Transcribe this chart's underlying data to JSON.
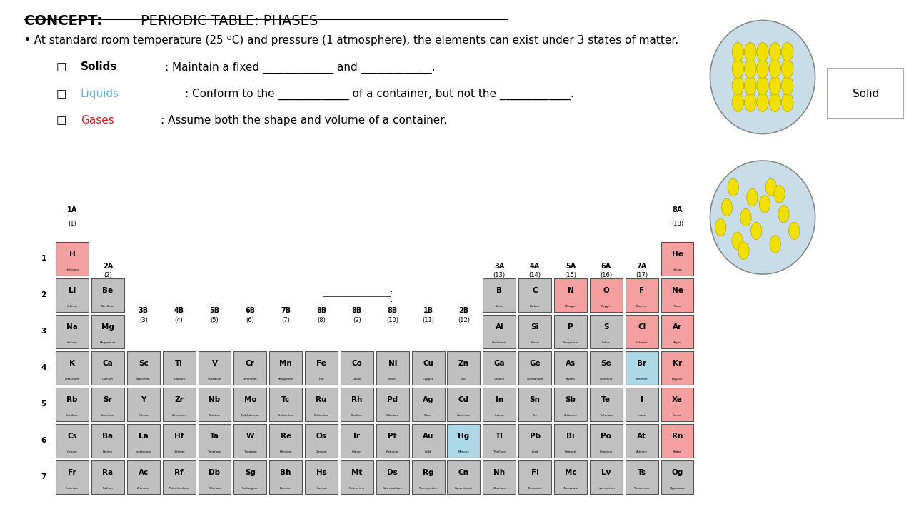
{
  "title_concept": "CONCEPT:",
  "title_main": " PERIODIC TABLE: PHASES",
  "bullet_text": "At standard room temperature (25 ºC) and pressure (1 atmosphere), the elements can exist under 3 states of matter.",
  "bg_color": "#ffffff",
  "liquid_color": "#6baed6",
  "gas_color": "#e41a1c",
  "element_bg_solid": "#c0c0c0",
  "element_bg_gas": "#f4a0a0",
  "element_bg_liquid": "#add8e6",
  "group_headers": [
    "1A",
    "2A",
    "3B",
    "4B",
    "5B",
    "6B",
    "7B",
    "8B",
    "8B",
    "8B",
    "1B",
    "2B",
    "3A",
    "4A",
    "5A",
    "6A",
    "7A",
    "8A"
  ],
  "group_numbers": [
    "(1)",
    "(2)",
    "(3)",
    "(4)",
    "(5)",
    "(6)",
    "(7)",
    "(8)",
    "(9)",
    "(10)",
    "(11)",
    "(12)",
    "(13)",
    "(14)",
    "(15)",
    "(16)",
    "(17)",
    "(18)"
  ],
  "period_labels": [
    "1",
    "2",
    "3",
    "4",
    "5",
    "6",
    "7"
  ],
  "elements": [
    {
      "symbol": "H",
      "name": "Hydrogen",
      "row": 1,
      "col": 1,
      "phase": "gas"
    },
    {
      "symbol": "He",
      "name": "Helium",
      "row": 1,
      "col": 18,
      "phase": "gas"
    },
    {
      "symbol": "Li",
      "name": "Lithium",
      "row": 2,
      "col": 1,
      "phase": "solid"
    },
    {
      "symbol": "Be",
      "name": "Beryllium",
      "row": 2,
      "col": 2,
      "phase": "solid"
    },
    {
      "symbol": "B",
      "name": "Boron",
      "row": 2,
      "col": 13,
      "phase": "solid"
    },
    {
      "symbol": "C",
      "name": "Carbon",
      "row": 2,
      "col": 14,
      "phase": "solid"
    },
    {
      "symbol": "N",
      "name": "Nitrogen",
      "row": 2,
      "col": 15,
      "phase": "gas"
    },
    {
      "symbol": "O",
      "name": "Oxygen",
      "row": 2,
      "col": 16,
      "phase": "gas"
    },
    {
      "symbol": "F",
      "name": "Fluorine",
      "row": 2,
      "col": 17,
      "phase": "gas"
    },
    {
      "symbol": "Ne",
      "name": "Neon",
      "row": 2,
      "col": 18,
      "phase": "gas"
    },
    {
      "symbol": "Na",
      "name": "Sodium",
      "row": 3,
      "col": 1,
      "phase": "solid"
    },
    {
      "symbol": "Mg",
      "name": "Magnesium",
      "row": 3,
      "col": 2,
      "phase": "solid"
    },
    {
      "symbol": "Al",
      "name": "Aluminum",
      "row": 3,
      "col": 13,
      "phase": "solid"
    },
    {
      "symbol": "Si",
      "name": "Silicon",
      "row": 3,
      "col": 14,
      "phase": "solid"
    },
    {
      "symbol": "P",
      "name": "Phosphorus",
      "row": 3,
      "col": 15,
      "phase": "solid"
    },
    {
      "symbol": "S",
      "name": "Sulfur",
      "row": 3,
      "col": 16,
      "phase": "solid"
    },
    {
      "symbol": "Cl",
      "name": "Chlorine",
      "row": 3,
      "col": 17,
      "phase": "gas"
    },
    {
      "symbol": "Ar",
      "name": "Argon",
      "row": 3,
      "col": 18,
      "phase": "gas"
    },
    {
      "symbol": "K",
      "name": "Potassium",
      "row": 4,
      "col": 1,
      "phase": "solid"
    },
    {
      "symbol": "Ca",
      "name": "Calcium",
      "row": 4,
      "col": 2,
      "phase": "solid"
    },
    {
      "symbol": "Sc",
      "name": "Scandium",
      "row": 4,
      "col": 3,
      "phase": "solid"
    },
    {
      "symbol": "Ti",
      "name": "Titanium",
      "row": 4,
      "col": 4,
      "phase": "solid"
    },
    {
      "symbol": "V",
      "name": "Vanadium",
      "row": 4,
      "col": 5,
      "phase": "solid"
    },
    {
      "symbol": "Cr",
      "name": "Chromium",
      "row": 4,
      "col": 6,
      "phase": "solid"
    },
    {
      "symbol": "Mn",
      "name": "Manganese",
      "row": 4,
      "col": 7,
      "phase": "solid"
    },
    {
      "symbol": "Fe",
      "name": "Iron",
      "row": 4,
      "col": 8,
      "phase": "solid"
    },
    {
      "symbol": "Co",
      "name": "Cobalt",
      "row": 4,
      "col": 9,
      "phase": "solid"
    },
    {
      "symbol": "Ni",
      "name": "Nickel",
      "row": 4,
      "col": 10,
      "phase": "solid"
    },
    {
      "symbol": "Cu",
      "name": "Copper",
      "row": 4,
      "col": 11,
      "phase": "solid"
    },
    {
      "symbol": "Zn",
      "name": "Zinc",
      "row": 4,
      "col": 12,
      "phase": "solid"
    },
    {
      "symbol": "Ga",
      "name": "Gallium",
      "row": 4,
      "col": 13,
      "phase": "solid"
    },
    {
      "symbol": "Ge",
      "name": "Germanium",
      "row": 4,
      "col": 14,
      "phase": "solid"
    },
    {
      "symbol": "As",
      "name": "Arsenic",
      "row": 4,
      "col": 15,
      "phase": "solid"
    },
    {
      "symbol": "Se",
      "name": "Selenium",
      "row": 4,
      "col": 16,
      "phase": "solid"
    },
    {
      "symbol": "Br",
      "name": "Bromine",
      "row": 4,
      "col": 17,
      "phase": "liquid"
    },
    {
      "symbol": "Kr",
      "name": "Krypton",
      "row": 4,
      "col": 18,
      "phase": "gas"
    },
    {
      "symbol": "Rb",
      "name": "Rubidium",
      "row": 5,
      "col": 1,
      "phase": "solid"
    },
    {
      "symbol": "Sr",
      "name": "Strontium",
      "row": 5,
      "col": 2,
      "phase": "solid"
    },
    {
      "symbol": "Y",
      "name": "Yttrium",
      "row": 5,
      "col": 3,
      "phase": "solid"
    },
    {
      "symbol": "Zr",
      "name": "Zirconium",
      "row": 5,
      "col": 4,
      "phase": "solid"
    },
    {
      "symbol": "Nb",
      "name": "Niobium",
      "row": 5,
      "col": 5,
      "phase": "solid"
    },
    {
      "symbol": "Mo",
      "name": "Molybdenum",
      "row": 5,
      "col": 6,
      "phase": "solid"
    },
    {
      "symbol": "Tc",
      "name": "Technetium",
      "row": 5,
      "col": 7,
      "phase": "solid"
    },
    {
      "symbol": "Ru",
      "name": "Ruthenium",
      "row": 5,
      "col": 8,
      "phase": "solid"
    },
    {
      "symbol": "Rh",
      "name": "Rhodium",
      "row": 5,
      "col": 9,
      "phase": "solid"
    },
    {
      "symbol": "Pd",
      "name": "Palladium",
      "row": 5,
      "col": 10,
      "phase": "solid"
    },
    {
      "symbol": "Ag",
      "name": "Silver",
      "row": 5,
      "col": 11,
      "phase": "solid"
    },
    {
      "symbol": "Cd",
      "name": "Cadmium",
      "row": 5,
      "col": 12,
      "phase": "solid"
    },
    {
      "symbol": "In",
      "name": "Indium",
      "row": 5,
      "col": 13,
      "phase": "solid"
    },
    {
      "symbol": "Sn",
      "name": "Tin",
      "row": 5,
      "col": 14,
      "phase": "solid"
    },
    {
      "symbol": "Sb",
      "name": "Antimony",
      "row": 5,
      "col": 15,
      "phase": "solid"
    },
    {
      "symbol": "Te",
      "name": "Tellurium",
      "row": 5,
      "col": 16,
      "phase": "solid"
    },
    {
      "symbol": "I",
      "name": "Iodine",
      "row": 5,
      "col": 17,
      "phase": "solid"
    },
    {
      "symbol": "Xe",
      "name": "Xenon",
      "row": 5,
      "col": 18,
      "phase": "gas"
    },
    {
      "symbol": "Cs",
      "name": "Cesium",
      "row": 6,
      "col": 1,
      "phase": "solid"
    },
    {
      "symbol": "Ba",
      "name": "Barium",
      "row": 6,
      "col": 2,
      "phase": "solid"
    },
    {
      "symbol": "La",
      "name": "Lanthanum",
      "row": 6,
      "col": 3,
      "phase": "solid"
    },
    {
      "symbol": "Hf",
      "name": "Hafnium",
      "row": 6,
      "col": 4,
      "phase": "solid"
    },
    {
      "symbol": "Ta",
      "name": "Tantalum",
      "row": 6,
      "col": 5,
      "phase": "solid"
    },
    {
      "symbol": "W",
      "name": "Tungsten",
      "row": 6,
      "col": 6,
      "phase": "solid"
    },
    {
      "symbol": "Re",
      "name": "Rhenium",
      "row": 6,
      "col": 7,
      "phase": "solid"
    },
    {
      "symbol": "Os",
      "name": "Osmium",
      "row": 6,
      "col": 8,
      "phase": "solid"
    },
    {
      "symbol": "Ir",
      "name": "Iridium",
      "row": 6,
      "col": 9,
      "phase": "solid"
    },
    {
      "symbol": "Pt",
      "name": "Platinum",
      "row": 6,
      "col": 10,
      "phase": "solid"
    },
    {
      "symbol": "Au",
      "name": "Gold",
      "row": 6,
      "col": 11,
      "phase": "solid"
    },
    {
      "symbol": "Hg",
      "name": "Mercury",
      "row": 6,
      "col": 12,
      "phase": "liquid"
    },
    {
      "symbol": "Tl",
      "name": "Thallium",
      "row": 6,
      "col": 13,
      "phase": "solid"
    },
    {
      "symbol": "Pb",
      "name": "Lead",
      "row": 6,
      "col": 14,
      "phase": "solid"
    },
    {
      "symbol": "Bi",
      "name": "Bismuth",
      "row": 6,
      "col": 15,
      "phase": "solid"
    },
    {
      "symbol": "Po",
      "name": "Polonium",
      "row": 6,
      "col": 16,
      "phase": "solid"
    },
    {
      "symbol": "At",
      "name": "Astatine",
      "row": 6,
      "col": 17,
      "phase": "solid"
    },
    {
      "symbol": "Rn",
      "name": "Radon",
      "row": 6,
      "col": 18,
      "phase": "gas"
    },
    {
      "symbol": "Fr",
      "name": "Francium",
      "row": 7,
      "col": 1,
      "phase": "solid"
    },
    {
      "symbol": "Ra",
      "name": "Radium",
      "row": 7,
      "col": 2,
      "phase": "solid"
    },
    {
      "symbol": "Ac",
      "name": "Actinium",
      "row": 7,
      "col": 3,
      "phase": "solid"
    },
    {
      "symbol": "Rf",
      "name": "Rutherfordium",
      "row": 7,
      "col": 4,
      "phase": "solid"
    },
    {
      "symbol": "Db",
      "name": "Dubnium",
      "row": 7,
      "col": 5,
      "phase": "solid"
    },
    {
      "symbol": "Sg",
      "name": "Seaborgium",
      "row": 7,
      "col": 6,
      "phase": "solid"
    },
    {
      "symbol": "Bh",
      "name": "Bohrium",
      "row": 7,
      "col": 7,
      "phase": "solid"
    },
    {
      "symbol": "Hs",
      "name": "Hassium",
      "row": 7,
      "col": 8,
      "phase": "solid"
    },
    {
      "symbol": "Mt",
      "name": "Meitnerium",
      "row": 7,
      "col": 9,
      "phase": "solid"
    },
    {
      "symbol": "Ds",
      "name": "Darmstadtium",
      "row": 7,
      "col": 10,
      "phase": "solid"
    },
    {
      "symbol": "Rg",
      "name": "Roentgenium",
      "row": 7,
      "col": 11,
      "phase": "solid"
    },
    {
      "symbol": "Cn",
      "name": "Copernicium",
      "row": 7,
      "col": 12,
      "phase": "solid"
    },
    {
      "symbol": "Nh",
      "name": "Nihonium",
      "row": 7,
      "col": 13,
      "phase": "solid"
    },
    {
      "symbol": "Fl",
      "name": "Flerovium",
      "row": 7,
      "col": 14,
      "phase": "solid"
    },
    {
      "symbol": "Mc",
      "name": "Moscovium",
      "row": 7,
      "col": 15,
      "phase": "solid"
    },
    {
      "symbol": "Lv",
      "name": "Livermorium",
      "row": 7,
      "col": 16,
      "phase": "solid"
    },
    {
      "symbol": "Ts",
      "name": "Tennessine",
      "row": 7,
      "col": 17,
      "phase": "solid"
    },
    {
      "symbol": "Og",
      "name": "Oganesson",
      "row": 7,
      "col": 18,
      "phase": "solid"
    }
  ]
}
